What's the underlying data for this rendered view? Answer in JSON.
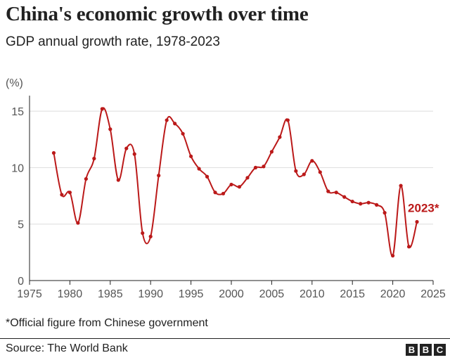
{
  "header": {
    "title": "China's economic growth over time",
    "subtitle": "GDP annual growth rate, 1978-2023"
  },
  "footer": {
    "footnote": "*Official figure from Chinese government",
    "source": "Source: The World Bank",
    "logo_letters": [
      "B",
      "B",
      "C"
    ]
  },
  "colors": {
    "line": "#bb1919",
    "grid": "#dddddd",
    "axis": "#222222",
    "text": "#222222",
    "tick": "#555555"
  },
  "chart_data": {
    "type": "line",
    "title": "China's economic growth over time",
    "subtitle": "GDP annual growth rate, 1978-2023",
    "unit_label": "(%)",
    "xlabel": "",
    "ylabel": "(%)",
    "xlim": [
      1975,
      2025
    ],
    "ylim": [
      0,
      16
    ],
    "xticks": [
      1975,
      1980,
      1985,
      1990,
      1995,
      2000,
      2005,
      2010,
      2015,
      2020,
      2025
    ],
    "yticks": [
      0,
      5,
      10,
      15
    ],
    "grid": true,
    "series": [
      {
        "name": "GDP annual growth rate",
        "x": [
          1978,
          1979,
          1980,
          1981,
          1982,
          1983,
          1984,
          1985,
          1986,
          1987,
          1988,
          1989,
          1990,
          1991,
          1992,
          1993,
          1994,
          1995,
          1996,
          1997,
          1998,
          1999,
          2000,
          2001,
          2002,
          2003,
          2004,
          2005,
          2006,
          2007,
          2008,
          2009,
          2010,
          2011,
          2012,
          2013,
          2014,
          2015,
          2016,
          2017,
          2018,
          2019,
          2020,
          2021,
          2022,
          2023
        ],
        "y": [
          11.3,
          7.6,
          7.8,
          5.1,
          9.0,
          10.8,
          15.2,
          13.4,
          8.9,
          11.7,
          11.2,
          4.2,
          3.9,
          9.3,
          14.2,
          13.9,
          13.0,
          11.0,
          9.9,
          9.2,
          7.8,
          7.7,
          8.5,
          8.3,
          9.1,
          10.0,
          10.1,
          11.4,
          12.7,
          14.2,
          9.7,
          9.4,
          10.6,
          9.6,
          7.9,
          7.8,
          7.4,
          7.0,
          6.8,
          6.9,
          6.7,
          6.0,
          2.2,
          8.4,
          3.0,
          5.2
        ]
      }
    ],
    "annotations": [
      {
        "text": "2023*",
        "x": 2023,
        "y": 5.2
      }
    ]
  }
}
